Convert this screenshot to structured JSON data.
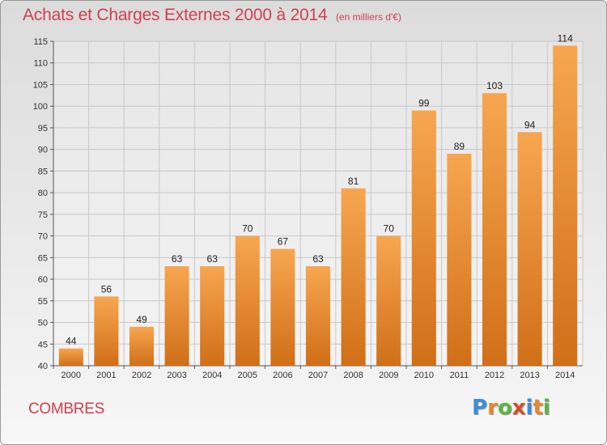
{
  "header": {
    "title": "Achats et Charges Externes 2000 à 2014",
    "subtitle": "(en milliers d'€)"
  },
  "commune": "COMBRES",
  "logo": {
    "letters": [
      "P",
      "r",
      "o",
      "x",
      "i",
      "t",
      "i"
    ],
    "colors": [
      "#3a8fd8",
      "#e8882c",
      "#5db345",
      "#d94c2a",
      "#3a8fd8",
      "#e8882c",
      "#5db345"
    ]
  },
  "chart_data": {
    "type": "bar",
    "categories": [
      "2000",
      "2001",
      "2002",
      "2003",
      "2004",
      "2005",
      "2006",
      "2007",
      "2008",
      "2009",
      "2010",
      "2011",
      "2012",
      "2013",
      "2014"
    ],
    "values": [
      44,
      56,
      49,
      63,
      63,
      70,
      67,
      63,
      81,
      70,
      99,
      89,
      103,
      94,
      114
    ],
    "title": "Achats et Charges Externes 2000 à 2014",
    "subtitle": "(en milliers d'€)",
    "xlabel": "",
    "ylabel": "",
    "ylim": [
      40,
      115
    ],
    "yticks": [
      40,
      45,
      50,
      55,
      60,
      65,
      70,
      75,
      80,
      85,
      90,
      95,
      100,
      105,
      110,
      115
    ],
    "grid": true,
    "colors": {
      "bar_top": "#f7a650",
      "bar_bottom": "#d06f18",
      "grid": "#c8c8c8",
      "plot_bg_top": "#e6e6e6",
      "plot_bg_bottom": "#f4f4f4"
    }
  }
}
